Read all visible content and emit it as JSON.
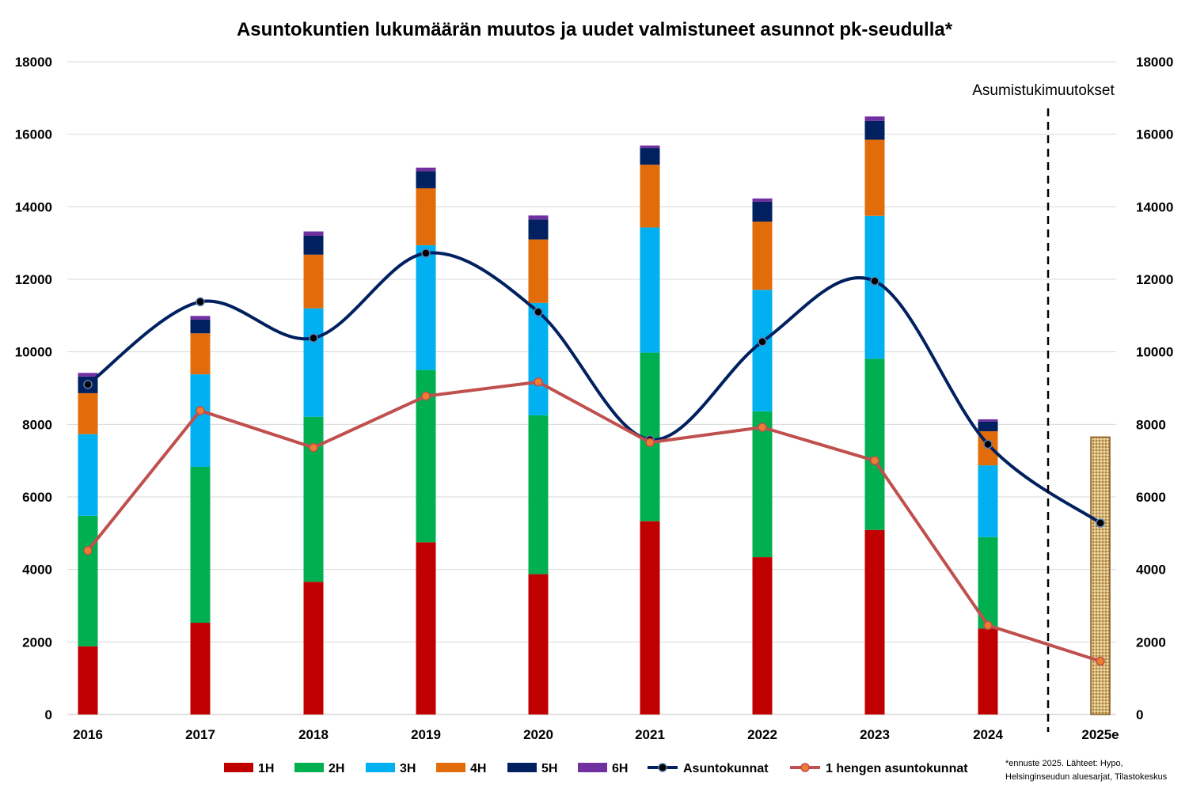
{
  "chart_data": {
    "type": "bar",
    "subtype": "stacked bar with line overlay",
    "title": "Asuntokuntien lukumäärän muutos ja uudet valmistuneet asunnot pk-seudulla*",
    "categories": [
      "2016",
      "2017",
      "2018",
      "2019",
      "2020",
      "2021",
      "2022",
      "2023",
      "2024",
      "2025e"
    ],
    "ylim": [
      0,
      18000
    ],
    "yticks": [
      0,
      2000,
      4000,
      6000,
      8000,
      10000,
      12000,
      14000,
      16000,
      18000
    ],
    "y2lim": [
      0,
      18000
    ],
    "grid": true,
    "legend_position": "bottom",
    "series": [
      {
        "name": "1H",
        "kind": "bar",
        "color": "#c00000",
        "values": [
          1880,
          2530,
          3660,
          4750,
          3870,
          5330,
          4340,
          5090,
          2370,
          null
        ]
      },
      {
        "name": "2H",
        "kind": "bar",
        "color": "#00b050",
        "values": [
          3600,
          4300,
          4550,
          4750,
          4380,
          4650,
          4020,
          4720,
          2520,
          null
        ]
      },
      {
        "name": "3H",
        "kind": "bar",
        "color": "#00b0f0",
        "values": [
          2250,
          2550,
          2990,
          3440,
          3100,
          3450,
          3350,
          3940,
          1980,
          null
        ]
      },
      {
        "name": "4H",
        "kind": "bar",
        "color": "#e36c0a",
        "values": [
          1130,
          1130,
          1480,
          1570,
          1750,
          1730,
          1880,
          2100,
          940,
          null
        ]
      },
      {
        "name": "5H",
        "kind": "bar",
        "color": "#002060",
        "values": [
          460,
          380,
          520,
          470,
          550,
          460,
          550,
          520,
          270,
          null
        ]
      },
      {
        "name": "6H",
        "kind": "bar",
        "color": "#7030a0",
        "values": [
          100,
          100,
          120,
          100,
          110,
          70,
          90,
          120,
          60,
          null
        ]
      },
      {
        "name": "Asuntokunnat",
        "kind": "line",
        "color": "#002060",
        "values": [
          9100,
          11380,
          10380,
          12720,
          11100,
          7580,
          10280,
          11950,
          7450,
          5280
        ]
      },
      {
        "name": "1 hengen asuntokunnat",
        "kind": "line",
        "color": "#c0504d",
        "values": [
          4520,
          8380,
          7360,
          8780,
          9170,
          7500,
          7920,
          7000,
          2460,
          1470
        ]
      }
    ],
    "forecast_bar": {
      "category": "2025e",
      "value": 7650,
      "color": "#c9a96a"
    },
    "annotation": {
      "text": "Asumistukimuutokset",
      "divider_between": [
        "2024",
        "2025e"
      ]
    },
    "footnote": [
      "*ennuste 2025. Lähteet: Hypo,",
      "Helsinginseudun aluesarjat, Tilastokeskus"
    ]
  }
}
